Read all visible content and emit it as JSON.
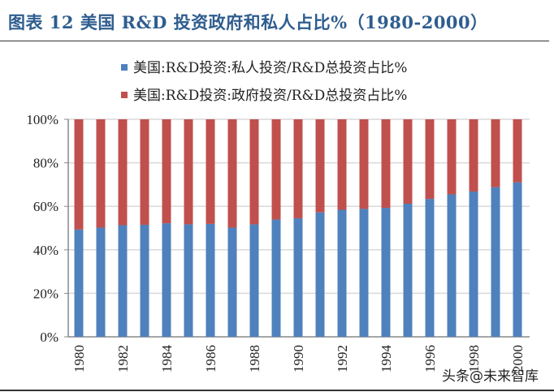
{
  "title": "图表 12 美国 R&D 投资政府和私人占比%（1980-2000）",
  "watermark": "头条@未来智库",
  "chart_data": {
    "type": "bar",
    "stacked": true,
    "percent_stacked": true,
    "categories": [
      "1980",
      "1981",
      "1982",
      "1983",
      "1984",
      "1985",
      "1986",
      "1987",
      "1988",
      "1989",
      "1990",
      "1991",
      "1992",
      "1993",
      "1994",
      "1995",
      "1996",
      "1997",
      "1998",
      "1999",
      "2000"
    ],
    "tick_labels_x": [
      "1980",
      "1982",
      "1984",
      "1986",
      "1988",
      "1990",
      "1992",
      "1994",
      "1996",
      "1998",
      "2000"
    ],
    "tick_labels_y": [
      "0%",
      "20%",
      "40%",
      "60%",
      "80%",
      "100%"
    ],
    "ylim": [
      0,
      100
    ],
    "grid": true,
    "legend_position": "top",
    "series": [
      {
        "name": "美国:R&D投资:私人投资/R&D总投资占比%",
        "color": "#4f81bd",
        "values": [
          49.3,
          50.2,
          51.3,
          51.5,
          52.2,
          51.7,
          51.9,
          50.2,
          51.7,
          53.9,
          54.5,
          57.2,
          58.4,
          58.8,
          59.3,
          61.2,
          63.4,
          65.5,
          66.8,
          68.8,
          71.0
        ]
      },
      {
        "name": "美国:R&D投资:政府投资/R&D总投资占比%",
        "color": "#c0504d",
        "values": [
          50.7,
          49.8,
          48.7,
          48.5,
          47.8,
          48.3,
          48.1,
          49.8,
          48.3,
          46.1,
          45.5,
          42.8,
          41.6,
          41.2,
          40.7,
          38.8,
          36.6,
          34.5,
          33.2,
          31.2,
          29.0
        ]
      }
    ]
  }
}
